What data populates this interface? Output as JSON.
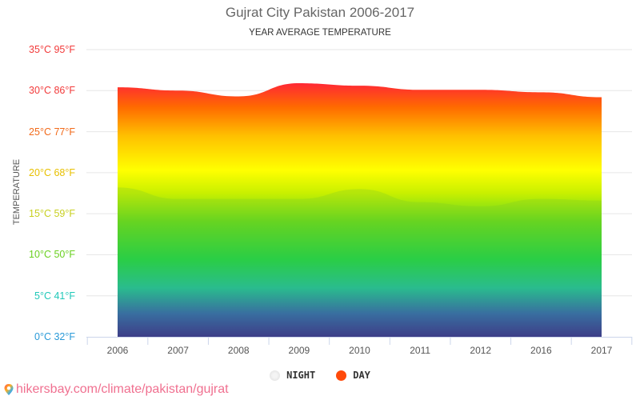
{
  "header": {
    "title": "Gujrat City Pakistan 2006-2017",
    "subtitle": "YEAR AVERAGE TEMPERATURE"
  },
  "y_axis": {
    "label": "TEMPERATURE",
    "ticks": [
      {
        "label": "35°C 95°F",
        "value": 35,
        "color": "#f23a3a"
      },
      {
        "label": "30°C 86°F",
        "value": 30,
        "color": "#f23a3a"
      },
      {
        "label": "25°C 77°F",
        "value": 25,
        "color": "#f26a1a"
      },
      {
        "label": "20°C 68°F",
        "value": 20,
        "color": "#e8c000"
      },
      {
        "label": "15°C 59°F",
        "value": 15,
        "color": "#c8d020"
      },
      {
        "label": "10°C 50°F",
        "value": 10,
        "color": "#6ad020"
      },
      {
        "label": "5°C 41°F",
        "value": 5,
        "color": "#20c8b8"
      },
      {
        "label": "0°C 32°F",
        "value": 0,
        "color": "#2a9ad8"
      }
    ]
  },
  "x_axis": {
    "ticks": [
      "2006",
      "2007",
      "2008",
      "2009",
      "2010",
      "2011",
      "2012",
      "2016",
      "2017"
    ]
  },
  "legend": {
    "items": [
      {
        "label": "NIGHT",
        "color": "#e0e0e0"
      },
      {
        "label": "DAY",
        "color": "#ff4a0a"
      }
    ]
  },
  "footer": {
    "source_text": "hikersbay.com/climate/pakistan/gujrat",
    "icon": "map-pin-icon"
  },
  "chart_data": {
    "type": "area",
    "title": "Gujrat City Pakistan 2006-2017",
    "subtitle": "YEAR AVERAGE TEMPERATURE",
    "xlabel": "",
    "ylabel": "TEMPERATURE",
    "categories": [
      "2006",
      "2007",
      "2008",
      "2009",
      "2010",
      "2011",
      "2012",
      "2016",
      "2017"
    ],
    "series": [
      {
        "name": "DAY",
        "unit": "°C",
        "values": [
          30.4,
          30.0,
          29.3,
          30.9,
          30.6,
          30.1,
          30.1,
          29.8,
          29.2
        ]
      },
      {
        "name": "NIGHT",
        "unit": "°C",
        "values": [
          18.2,
          16.8,
          16.8,
          16.8,
          18.0,
          16.4,
          15.9,
          16.8,
          16.6
        ]
      }
    ],
    "ylim": [
      0,
      35
    ],
    "y_ticks_celsius": [
      0,
      5,
      10,
      15,
      20,
      25,
      30,
      35
    ],
    "y_ticks_fahrenheit": [
      32,
      41,
      50,
      59,
      68,
      77,
      86,
      95
    ],
    "grid": true,
    "legend_position": "bottom",
    "fill": "vertical rainbow gradient (blue bottom → green → yellow → red top)"
  }
}
